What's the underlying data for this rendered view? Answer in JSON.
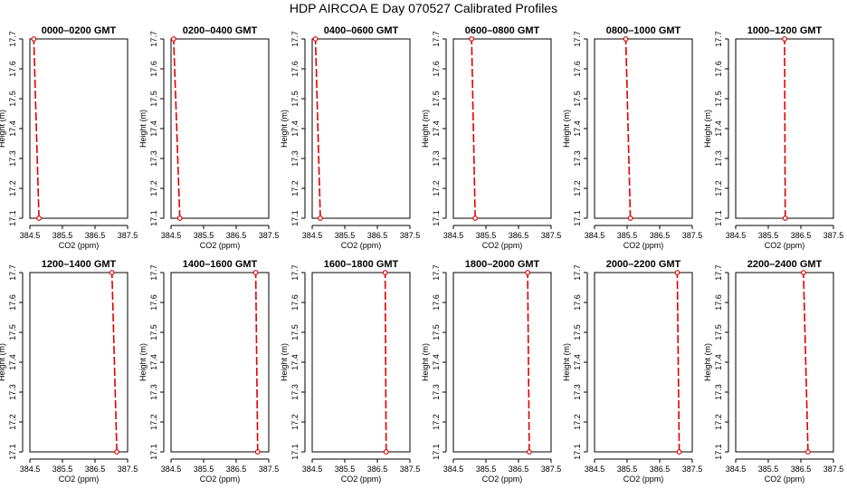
{
  "figure": {
    "title": "HDP  AIRCOA E  Day 070527  Calibrated Profiles"
  },
  "style": {
    "series_color": "#e00000",
    "axis_color": "#000000"
  },
  "chart_data": [
    {
      "type": "line",
      "title": "0000–0200 GMT",
      "xlabel": "CO2 (ppm)",
      "ylabel": "Height (m)",
      "xlim": [
        384.5,
        387.5
      ],
      "ylim": [
        17.1,
        17.7
      ],
      "xticks": [
        "384.5",
        "385.5",
        "386.5",
        "387.5"
      ],
      "yticks": [
        "17.1",
        "17.2",
        "17.3",
        "17.4",
        "17.5",
        "17.6",
        "17.7"
      ],
      "series": [
        {
          "x": [
            384.78,
            384.62
          ],
          "y": [
            17.1,
            17.7
          ]
        }
      ]
    },
    {
      "type": "line",
      "title": "0200–0400 GMT",
      "xlabel": "CO2 (ppm)",
      "ylabel": "Height (m)",
      "xlim": [
        384.5,
        387.5
      ],
      "ylim": [
        17.1,
        17.7
      ],
      "xticks": [
        "384.5",
        "385.5",
        "386.5",
        "387.5"
      ],
      "yticks": [
        "17.1",
        "17.2",
        "17.3",
        "17.4",
        "17.5",
        "17.6",
        "17.7"
      ],
      "series": [
        {
          "x": [
            384.77,
            384.58
          ],
          "y": [
            17.1,
            17.7
          ]
        }
      ]
    },
    {
      "type": "line",
      "title": "0400–0600 GMT",
      "xlabel": "CO2 (ppm)",
      "ylabel": "Height (m)",
      "xlim": [
        384.5,
        387.5
      ],
      "ylim": [
        17.1,
        17.7
      ],
      "xticks": [
        "384.5",
        "385.5",
        "386.5",
        "387.5"
      ],
      "yticks": [
        "17.1",
        "17.2",
        "17.3",
        "17.4",
        "17.5",
        "17.6",
        "17.7"
      ],
      "series": [
        {
          "x": [
            384.75,
            384.6
          ],
          "y": [
            17.1,
            17.7
          ]
        }
      ]
    },
    {
      "type": "line",
      "title": "0600–0800 GMT",
      "xlabel": "CO2 (ppm)",
      "ylabel": "Height (m)",
      "xlim": [
        384.5,
        387.5
      ],
      "ylim": [
        17.1,
        17.7
      ],
      "xticks": [
        "384.5",
        "385.5",
        "386.5",
        "387.5"
      ],
      "yticks": [
        "17.1",
        "17.2",
        "17.3",
        "17.4",
        "17.5",
        "17.6",
        "17.7"
      ],
      "series": [
        {
          "x": [
            385.17,
            385.06
          ],
          "y": [
            17.1,
            17.7
          ]
        }
      ]
    },
    {
      "type": "line",
      "title": "0800–1000 GMT",
      "xlabel": "CO2 (ppm)",
      "ylabel": "Height (m)",
      "xlim": [
        384.5,
        387.5
      ],
      "ylim": [
        17.1,
        17.7
      ],
      "xticks": [
        "384.5",
        "385.5",
        "386.5",
        "387.5"
      ],
      "yticks": [
        "17.1",
        "17.2",
        "17.3",
        "17.4",
        "17.5",
        "17.6",
        "17.7"
      ],
      "series": [
        {
          "x": [
            385.6,
            385.46
          ],
          "y": [
            17.1,
            17.7
          ]
        }
      ]
    },
    {
      "type": "line",
      "title": "1000–1200 GMT",
      "xlabel": "CO2 (ppm)",
      "ylabel": "Height (m)",
      "xlim": [
        384.5,
        387.5
      ],
      "ylim": [
        17.1,
        17.7
      ],
      "xticks": [
        "384.5",
        "385.5",
        "386.5",
        "387.5"
      ],
      "yticks": [
        "17.1",
        "17.2",
        "17.3",
        "17.4",
        "17.5",
        "17.6",
        "17.7"
      ],
      "series": [
        {
          "x": [
            386.02,
            386.0
          ],
          "y": [
            17.1,
            17.7
          ]
        }
      ]
    },
    {
      "type": "line",
      "title": "1200–1400 GMT",
      "xlabel": "CO2 (ppm)",
      "ylabel": "Height (m)",
      "xlim": [
        384.5,
        387.5
      ],
      "ylim": [
        17.1,
        17.7
      ],
      "xticks": [
        "384.5",
        "385.5",
        "386.5",
        "387.5"
      ],
      "yticks": [
        "17.1",
        "17.2",
        "17.3",
        "17.4",
        "17.5",
        "17.6",
        "17.7"
      ],
      "series": [
        {
          "x": [
            387.17,
            387.02
          ],
          "y": [
            17.1,
            17.7
          ]
        }
      ]
    },
    {
      "type": "line",
      "title": "1400–1600 GMT",
      "xlabel": "CO2 (ppm)",
      "ylabel": "Height (m)",
      "xlim": [
        384.5,
        387.5
      ],
      "ylim": [
        17.1,
        17.7
      ],
      "xticks": [
        "384.5",
        "385.5",
        "386.5",
        "387.5"
      ],
      "yticks": [
        "17.1",
        "17.2",
        "17.3",
        "17.4",
        "17.5",
        "17.6",
        "17.7"
      ],
      "series": [
        {
          "x": [
            387.16,
            387.1
          ],
          "y": [
            17.1,
            17.7
          ]
        }
      ]
    },
    {
      "type": "line",
      "title": "1600–1800 GMT",
      "xlabel": "CO2 (ppm)",
      "ylabel": "Height (m)",
      "xlim": [
        384.5,
        387.5
      ],
      "ylim": [
        17.1,
        17.7
      ],
      "xticks": [
        "384.5",
        "385.5",
        "386.5",
        "387.5"
      ],
      "yticks": [
        "17.1",
        "17.2",
        "17.3",
        "17.4",
        "17.5",
        "17.6",
        "17.7"
      ],
      "series": [
        {
          "x": [
            386.77,
            386.74
          ],
          "y": [
            17.1,
            17.7
          ]
        }
      ]
    },
    {
      "type": "line",
      "title": "1800–2000 GMT",
      "xlabel": "CO2 (ppm)",
      "ylabel": "Height (m)",
      "xlim": [
        384.5,
        387.5
      ],
      "ylim": [
        17.1,
        17.7
      ],
      "xticks": [
        "384.5",
        "385.5",
        "386.5",
        "387.5"
      ],
      "yticks": [
        "17.1",
        "17.2",
        "17.3",
        "17.4",
        "17.5",
        "17.6",
        "17.7"
      ],
      "series": [
        {
          "x": [
            386.83,
            386.78
          ],
          "y": [
            17.1,
            17.7
          ]
        }
      ]
    },
    {
      "type": "line",
      "title": "2000–2200 GMT",
      "xlabel": "CO2 (ppm)",
      "ylabel": "Height (m)",
      "xlim": [
        384.5,
        387.5
      ],
      "ylim": [
        17.1,
        17.7
      ],
      "xticks": [
        "384.5",
        "385.5",
        "386.5",
        "387.5"
      ],
      "yticks": [
        "17.1",
        "17.2",
        "17.3",
        "17.4",
        "17.5",
        "17.6",
        "17.7"
      ],
      "series": [
        {
          "x": [
            387.1,
            387.04
          ],
          "y": [
            17.1,
            17.7
          ]
        }
      ]
    },
    {
      "type": "line",
      "title": "2200–2400 GMT",
      "xlabel": "CO2 (ppm)",
      "ylabel": "Height (m)",
      "xlim": [
        384.5,
        387.5
      ],
      "ylim": [
        17.1,
        17.7
      ],
      "xticks": [
        "384.5",
        "385.5",
        "386.5",
        "387.5"
      ],
      "yticks": [
        "17.1",
        "17.2",
        "17.3",
        "17.4",
        "17.5",
        "17.6",
        "17.7"
      ],
      "series": [
        {
          "x": [
            386.72,
            386.58
          ],
          "y": [
            17.1,
            17.7
          ]
        }
      ]
    }
  ]
}
